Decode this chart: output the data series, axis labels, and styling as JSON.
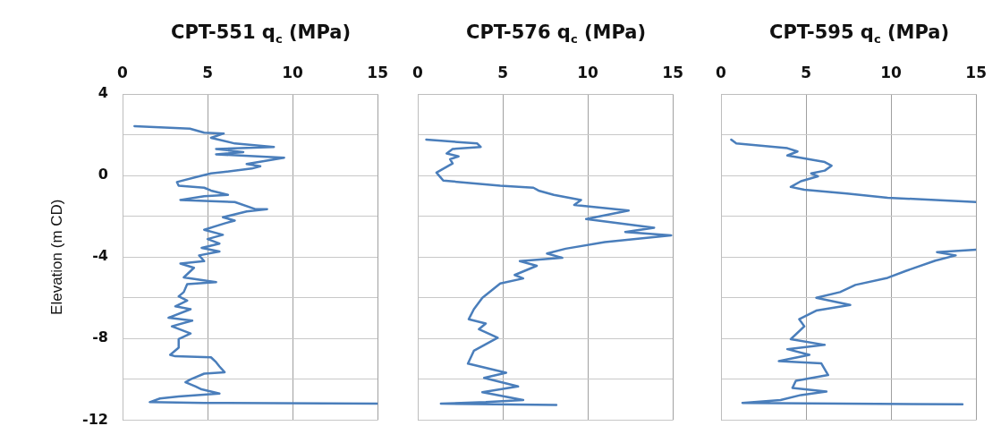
{
  "chart_data": [
    {
      "type": "line",
      "title": "CPT-551 q$_{c}$ (MPa)",
      "ylabel": "Elevation (m CD)",
      "xlim": [
        0,
        15
      ],
      "xticks": [
        0,
        5,
        10,
        15
      ],
      "ylim": [
        -12,
        4
      ],
      "yticks": [
        -12,
        {
          "value": -10,
          "label": null
        },
        -8,
        {
          "value": -6,
          "label": null
        },
        -4,
        {
          "value": -2,
          "label": null
        },
        0,
        {
          "value": 2,
          "label": null
        },
        4
      ],
      "grid": true,
      "legend": false,
      "marker": "none",
      "line_style": "solid",
      "series": [
        {
          "color": "#4a7ebb",
          "x": [
            0.7,
            3.96,
            4.8,
            5.95,
            5.2,
            6.6,
            8.9,
            5.5,
            7.1,
            5.5,
            9.5,
            7.3,
            8.1,
            7.6,
            5.2,
            4.5,
            3.2,
            3.3,
            4.8,
            5.2,
            6.2,
            4.8,
            3.4,
            6.6,
            7.8,
            8.5,
            7.3,
            5.9,
            6.6,
            6.0,
            4.8,
            5.9,
            5.0,
            5.7,
            4.65,
            5.7,
            4.5,
            4.8,
            3.4,
            4.2,
            3.6,
            5.5,
            3.8,
            3.6,
            3.3,
            3.8,
            3.1,
            4.0,
            2.7,
            4.1,
            2.9,
            4.0,
            3.3,
            3.3,
            2.8,
            3.1,
            5.2,
            5.5,
            5.7,
            6.0,
            4.8,
            4.0,
            3.7,
            4.3,
            4.65,
            5.7,
            3.3,
            2.2,
            1.6,
            4.8,
            15
          ],
          "values": [
            2.42,
            2.3,
            2.1,
            2.06,
            1.85,
            1.57,
            1.4,
            1.3,
            1.15,
            1.04,
            0.87,
            0.56,
            0.45,
            0.34,
            0.1,
            -0.04,
            -0.32,
            -0.5,
            -0.6,
            -0.74,
            -0.95,
            -1.02,
            -1.2,
            -1.3,
            -1.65,
            -1.65,
            -1.76,
            -2.05,
            -2.21,
            -2.35,
            -2.66,
            -2.91,
            -3.12,
            -3.34,
            -3.55,
            -3.73,
            -3.92,
            -4.2,
            -4.32,
            -4.53,
            -5.0,
            -5.23,
            -5.33,
            -5.72,
            -5.93,
            -6.14,
            -6.42,
            -6.56,
            -6.98,
            -7.12,
            -7.4,
            -7.75,
            -8.03,
            -8.45,
            -8.8,
            -8.87,
            -8.92,
            -9.16,
            -9.37,
            -9.65,
            -9.72,
            -10.0,
            -10.14,
            -10.35,
            -10.49,
            -10.7,
            -10.84,
            -10.94,
            -11.12,
            -11.16,
            -11.19
          ]
        }
      ]
    },
    {
      "type": "line",
      "title": "CPT-576 q$_{c}$ (MPa)",
      "xlim": [
        0,
        15
      ],
      "xticks": [
        0,
        5,
        10,
        15
      ],
      "ylim": [
        -12,
        4
      ],
      "yticks": [
        -12,
        {
          "value": -10,
          "label": null
        },
        -8,
        {
          "value": -6,
          "label": null
        },
        -4,
        {
          "value": -2,
          "label": null
        },
        0,
        {
          "value": 2,
          "label": null
        },
        4
      ],
      "tick_labels": "x",
      "grid": true,
      "legend": false,
      "marker": "none",
      "line_style": "solid",
      "series": [
        {
          "color": "#4a7ebb",
          "x": [
            0.5,
            3.5,
            3.7,
            2.05,
            1.7,
            2.4,
            1.9,
            2.05,
            1.1,
            1.36,
            1.5,
            4.85,
            6.8,
            7.1,
            8.0,
            9.6,
            9.2,
            12.4,
            9.9,
            13.9,
            12.2,
            14.9,
            11.0,
            8.7,
            7.6,
            8.5,
            6.0,
            7.0,
            5.7,
            6.2,
            4.85,
            3.8,
            3.3,
            3.0,
            4.0,
            3.6,
            4.7,
            3.3,
            2.95,
            5.2,
            3.9,
            5.9,
            3.8,
            6.2,
            4.0,
            1.36,
            8.15
          ],
          "values": [
            1.76,
            1.57,
            1.4,
            1.3,
            1.08,
            0.94,
            0.8,
            0.59,
            0.14,
            -0.11,
            -0.25,
            -0.5,
            -0.6,
            -0.74,
            -0.95,
            -1.2,
            -1.44,
            -1.72,
            -2.14,
            -2.56,
            -2.77,
            -2.94,
            -3.27,
            -3.59,
            -3.83,
            -4.04,
            -4.2,
            -4.43,
            -4.88,
            -5.05,
            -5.3,
            -6.0,
            -6.56,
            -7.05,
            -7.26,
            -7.54,
            -7.96,
            -8.6,
            -9.23,
            -9.68,
            -9.93,
            -10.35,
            -10.63,
            -11.02,
            -11.12,
            -11.19,
            -11.26
          ]
        }
      ]
    },
    {
      "type": "line",
      "title": "CPT-595 q$_{c}$ (MPa)",
      "xlim": [
        0,
        15
      ],
      "xticks": [
        0,
        5,
        10,
        15
      ],
      "ylim": [
        -12,
        4
      ],
      "yticks": [
        -12,
        {
          "value": -10,
          "label": null
        },
        -8,
        {
          "value": -6,
          "label": null
        },
        -4,
        {
          "value": -2,
          "label": null
        },
        0,
        {
          "value": 2,
          "label": null
        },
        4
      ],
      "tick_labels": "x",
      "grid": true,
      "legend": false,
      "marker": "none",
      "line_style": "solid",
      "series": [
        {
          "color": "#4a7ebb",
          "x": [
            0.6,
            0.9,
            3.9,
            4.5,
            3.9,
            4.9,
            6.1,
            6.5,
            6.1,
            5.3,
            5.7,
            4.7,
            4.1,
            4.9,
            7.4,
            9.8,
            15
          ],
          "values": [
            1.76,
            1.57,
            1.34,
            1.18,
            0.98,
            0.84,
            0.66,
            0.48,
            0.24,
            0.1,
            -0.04,
            -0.28,
            -0.56,
            -0.7,
            -0.88,
            -1.09,
            -1.3
          ]
        },
        {
          "color": "#4a7ebb",
          "x": [
            15,
            12.7,
            13.8,
            12.6,
            10.9,
            9.8,
            7.9,
            7.0,
            5.6,
            7.6,
            5.6,
            4.6,
            4.9,
            4.1,
            6.1,
            3.9,
            5.2,
            3.4,
            5.9,
            6.3,
            4.4,
            4.2,
            6.2,
            4.7,
            3.5,
            1.26,
            14.2
          ],
          "values": [
            -3.64,
            -3.76,
            -3.92,
            -4.18,
            -4.67,
            -5.02,
            -5.37,
            -5.72,
            -6.0,
            -6.35,
            -6.63,
            -7.05,
            -7.4,
            -8.03,
            -8.31,
            -8.52,
            -8.8,
            -9.11,
            -9.22,
            -9.79,
            -10.07,
            -10.42,
            -10.6,
            -10.77,
            -11.02,
            -11.16,
            -11.23
          ]
        }
      ]
    }
  ]
}
